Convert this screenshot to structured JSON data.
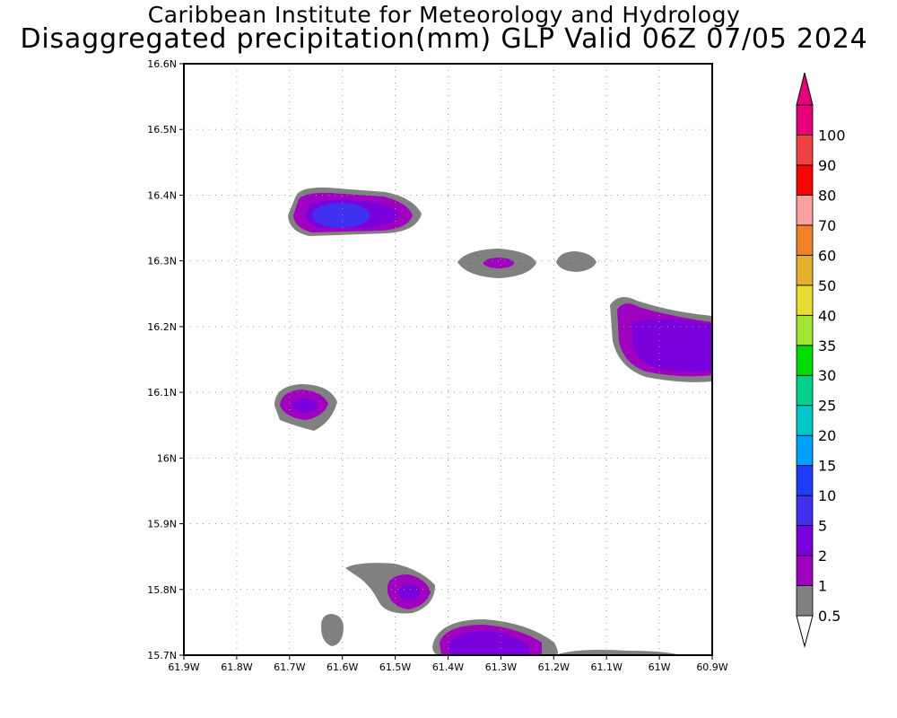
{
  "title_line1": "Caribbean Institute for Meteorology and Hydrology",
  "title_line2": "Disaggregated precipitation(mm) GLP Valid 06Z 07/05 2024",
  "map": {
    "lon_range": [
      -61.9,
      -60.9
    ],
    "lat_range": [
      15.7,
      16.6
    ],
    "grid": "dotted",
    "lon_labels": [
      "61.9W",
      "61.8W",
      "61.7W",
      "61.6W",
      "61.5W",
      "61.4W",
      "61.3W",
      "61.2W",
      "61.1W",
      "61W",
      "60.9W"
    ],
    "lat_labels": [
      "15.7N",
      "15.8N",
      "15.9N",
      "16N",
      "16.1N",
      "16.2N",
      "16.3N",
      "16.4N",
      "16.5N",
      "16.6N"
    ]
  },
  "colorbar": {
    "labels": [
      "0.5",
      "1",
      "2",
      "5",
      "10",
      "15",
      "20",
      "25",
      "30",
      "35",
      "40",
      "50",
      "60",
      "70",
      "80",
      "90",
      "100"
    ],
    "colors": [
      "#808080",
      "#a000c0",
      "#7a00dc",
      "#4030f0",
      "#1e3cff",
      "#00a0ff",
      "#00c8c8",
      "#00d28c",
      "#00dc00",
      "#a0e632",
      "#e6dc32",
      "#e6af2d",
      "#f08228",
      "#faa0a0",
      "#ff0000",
      "#f04040",
      "#e6007a"
    ],
    "under_color": "#ffffff",
    "over_color": "#e6007a"
  },
  "chart_data": {
    "type": "heatmap",
    "variable": "Disaggregated precipitation(mm)",
    "levels_mm": [
      0.5,
      1,
      2,
      5,
      10
    ],
    "cells": [
      {
        "lon_range": [
          -61.7,
          -61.48
        ],
        "lat_range": [
          16.34,
          16.41
        ],
        "max_level_mm": 5
      },
      {
        "lon_range": [
          -61.34,
          -61.25
        ],
        "lat_range": [
          16.28,
          16.32
        ],
        "max_level_mm": 1
      },
      {
        "lon_range": [
          -61.19,
          -61.13
        ],
        "lat_range": [
          16.29,
          16.31
        ],
        "max_level_mm": 0.5
      },
      {
        "lon_range": [
          -61.06,
          -60.9
        ],
        "lat_range": [
          16.14,
          16.23
        ],
        "max_level_mm": 5
      },
      {
        "lon_range": [
          -61.71,
          -61.63
        ],
        "lat_range": [
          16.05,
          16.11
        ],
        "max_level_mm": 2
      },
      {
        "lon_range": [
          -61.54,
          -61.45
        ],
        "lat_range": [
          15.76,
          15.83
        ],
        "max_level_mm": 2
      },
      {
        "lon_range": [
          -61.65,
          -61.6
        ],
        "lat_range": [
          15.71,
          15.76
        ],
        "max_level_mm": 0.5
      },
      {
        "lon_range": [
          -61.4,
          -61.25
        ],
        "lat_range": [
          15.7,
          15.75
        ],
        "max_level_mm": 5
      },
      {
        "lon_range": [
          -61.2,
          -60.95
        ],
        "lat_range": [
          15.7,
          15.71
        ],
        "max_level_mm": 0.5
      }
    ]
  }
}
